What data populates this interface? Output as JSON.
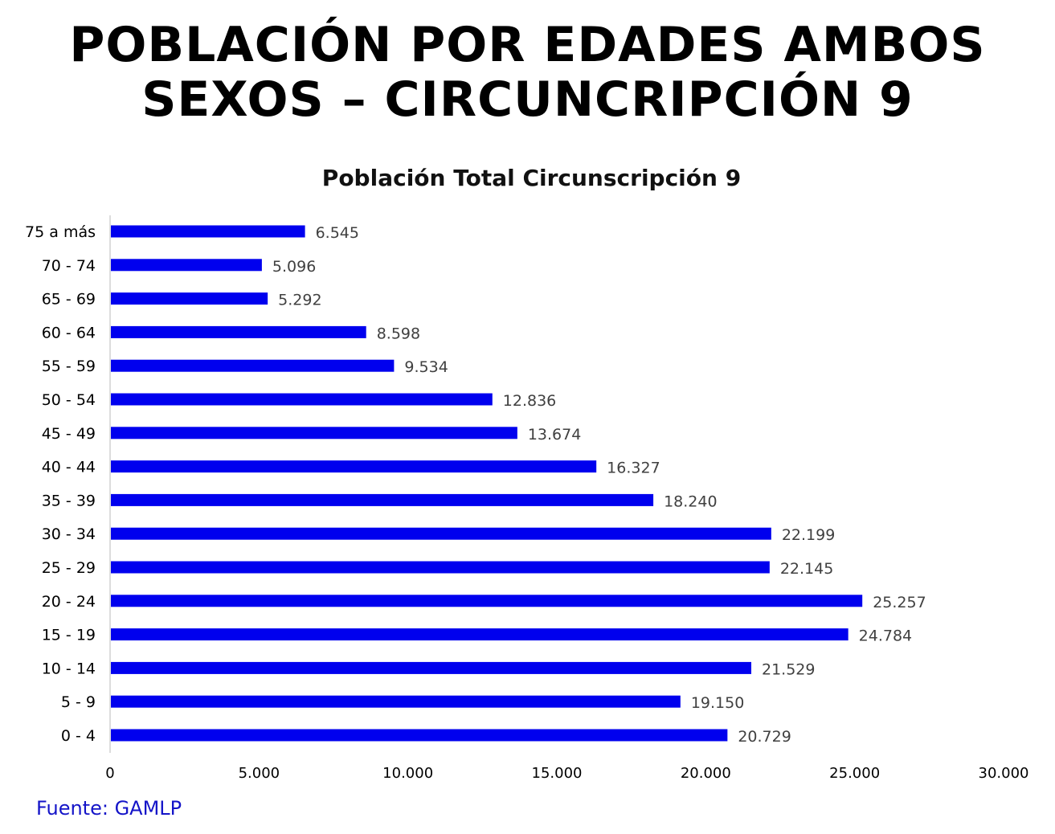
{
  "header": {
    "title_line1": "POBLACIÓN POR EDADES AMBOS",
    "title_line2": "SEXOS – CIRCUNCRIPCIÓN 9"
  },
  "footer": {
    "source": "Fuente: GAMLP"
  },
  "chart_data": {
    "type": "bar",
    "orientation": "horizontal",
    "title": "Población Total Circunscripción 9",
    "xlabel": "",
    "ylabel": "",
    "categories": [
      "75 a más",
      "70 - 74",
      "65 - 69",
      "60 - 64",
      "55 - 59",
      "50 - 54",
      "45 - 49",
      "40 - 44",
      "35 - 39",
      "30 - 34",
      "25 - 29",
      "20 - 24",
      "15 - 19",
      "10 - 14",
      "5 - 9",
      "0 - 4"
    ],
    "values": [
      6545,
      5096,
      5292,
      8598,
      9534,
      12836,
      13674,
      16327,
      18240,
      22199,
      22145,
      25257,
      24784,
      21529,
      19150,
      20729
    ],
    "value_labels": [
      "6.545",
      "5.096",
      "5.292",
      "8.598",
      "9.534",
      "12.836",
      "13.674",
      "16.327",
      "18.240",
      "22.199",
      "22.145",
      "25.257",
      "24.784",
      "21.529",
      "19.150",
      "20.729"
    ],
    "xlim": [
      0,
      30000
    ],
    "xticks": [
      0,
      5000,
      10000,
      15000,
      20000,
      25000,
      30000
    ],
    "xtick_labels": [
      "0",
      "5.000",
      "10.000",
      "15.000",
      "20.000",
      "25.000",
      "30.000"
    ],
    "grid": false,
    "legend": "none",
    "bar_color": "#0000ee",
    "label_color": "#404040"
  }
}
